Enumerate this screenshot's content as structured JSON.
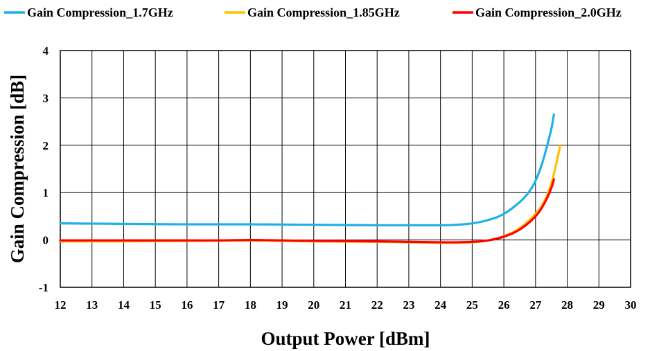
{
  "chart_data": {
    "type": "line",
    "title": "",
    "xlabel": "Output Power [dBm]",
    "ylabel": "Gain Compression [dB]",
    "xlim": [
      12,
      30
    ],
    "ylim": [
      -1,
      4
    ],
    "x_ticks": [
      12,
      13,
      14,
      15,
      16,
      17,
      18,
      19,
      20,
      21,
      22,
      23,
      24,
      25,
      26,
      27,
      28,
      29,
      30
    ],
    "y_ticks": [
      -1,
      0,
      1,
      2,
      3,
      4
    ],
    "grid": true,
    "legend_position": "top",
    "series": [
      {
        "name": "Gain Compression_1.7GHz",
        "color": "#1eb0e6",
        "x": [
          12,
          14,
          16,
          18,
          20,
          22,
          23,
          24,
          24.5,
          25,
          25.5,
          26,
          26.5,
          26.8,
          27,
          27.2,
          27.35,
          27.5,
          27.58
        ],
        "y": [
          0.35,
          0.34,
          0.33,
          0.33,
          0.32,
          0.31,
          0.31,
          0.31,
          0.32,
          0.35,
          0.42,
          0.55,
          0.8,
          1.02,
          1.25,
          1.6,
          1.95,
          2.35,
          2.65
        ]
      },
      {
        "name": "Gain Compression_1.85GHz",
        "color": "#ffc000",
        "x": [
          12,
          14,
          16,
          18,
          19,
          20,
          22,
          23,
          24,
          24.5,
          25,
          25.5,
          26,
          26.5,
          27,
          27.3,
          27.5,
          27.65,
          27.78
        ],
        "y": [
          -0.03,
          -0.03,
          -0.02,
          -0.01,
          -0.02,
          -0.03,
          -0.04,
          -0.05,
          -0.06,
          -0.06,
          -0.05,
          -0.01,
          0.08,
          0.25,
          0.55,
          0.85,
          1.2,
          1.6,
          2.0
        ]
      },
      {
        "name": "Gain Compression_2.0GHz",
        "color": "#ff0000",
        "x": [
          12,
          14,
          16,
          17,
          18,
          19,
          20,
          22,
          23,
          24,
          24.5,
          25,
          25.5,
          26,
          26.5,
          27,
          27.3,
          27.5,
          27.58
        ],
        "y": [
          -0.01,
          -0.01,
          -0.01,
          -0.01,
          0.0,
          -0.01,
          -0.02,
          -0.03,
          -0.04,
          -0.05,
          -0.05,
          -0.04,
          -0.01,
          0.07,
          0.22,
          0.5,
          0.8,
          1.1,
          1.28
        ]
      }
    ]
  }
}
